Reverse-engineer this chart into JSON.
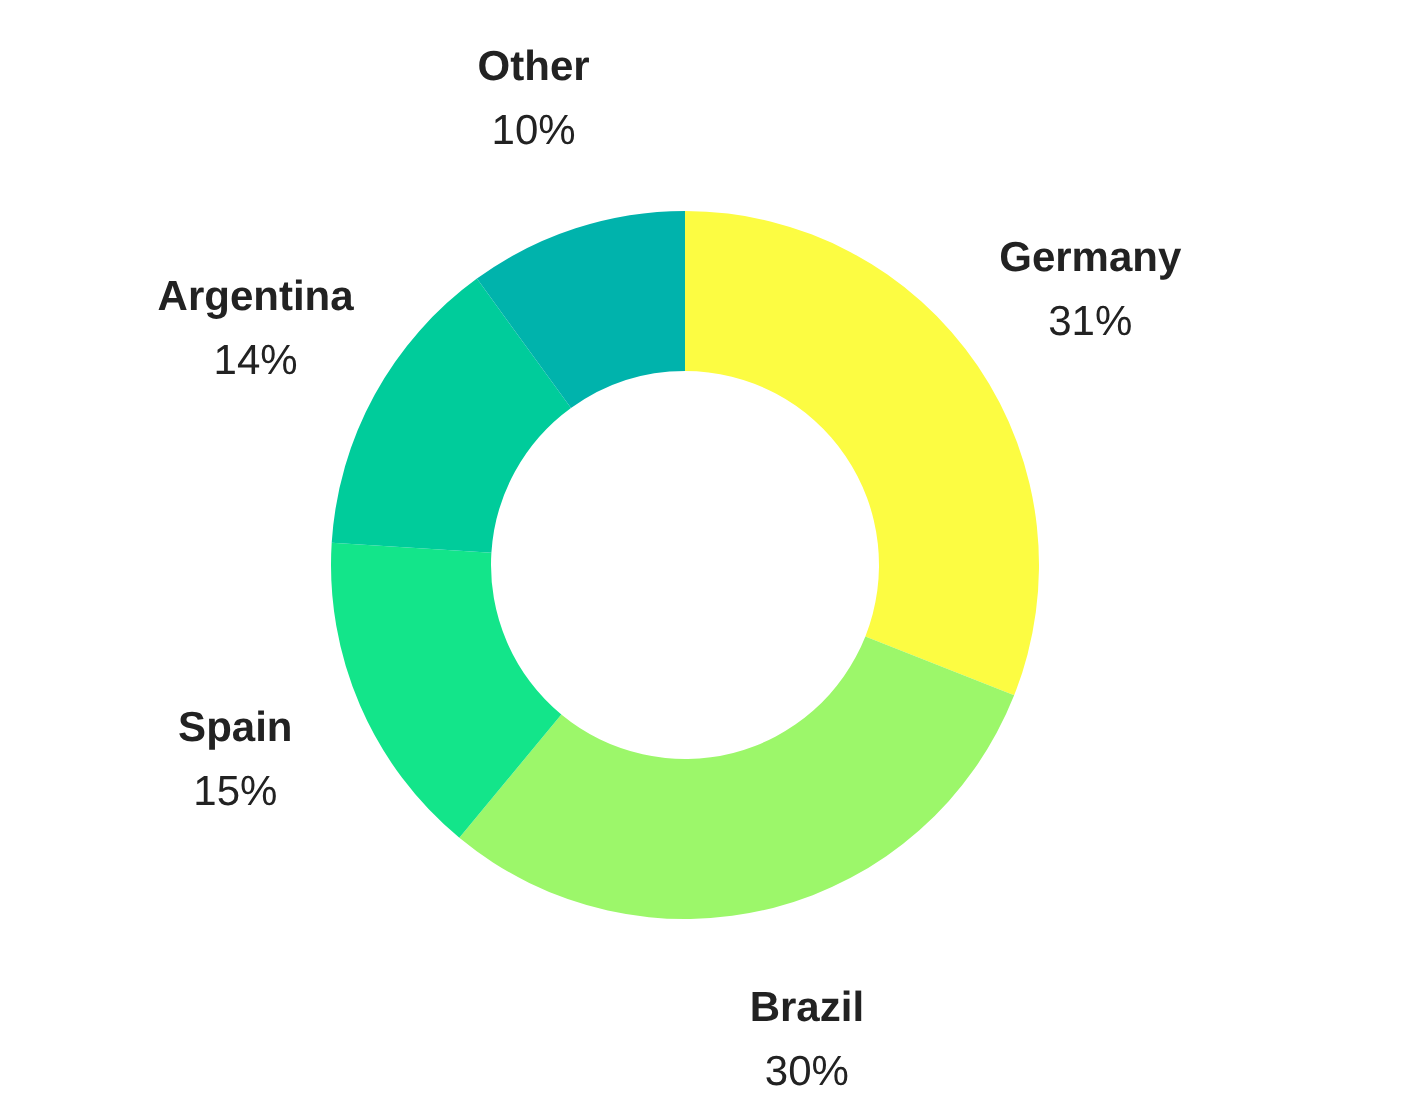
{
  "chart_data": {
    "type": "donut",
    "categories": [
      "Germany",
      "Brazil",
      "Spain",
      "Argentina",
      "Other"
    ],
    "values": [
      31,
      30,
      15,
      14,
      10
    ],
    "value_labels": [
      "31%",
      "30%",
      "15%",
      "14%",
      "10%"
    ],
    "colors": [
      "#fcfc42",
      "#9cf76a",
      "#13e58a",
      "#00cc9b",
      "#00b3ac"
    ]
  }
}
